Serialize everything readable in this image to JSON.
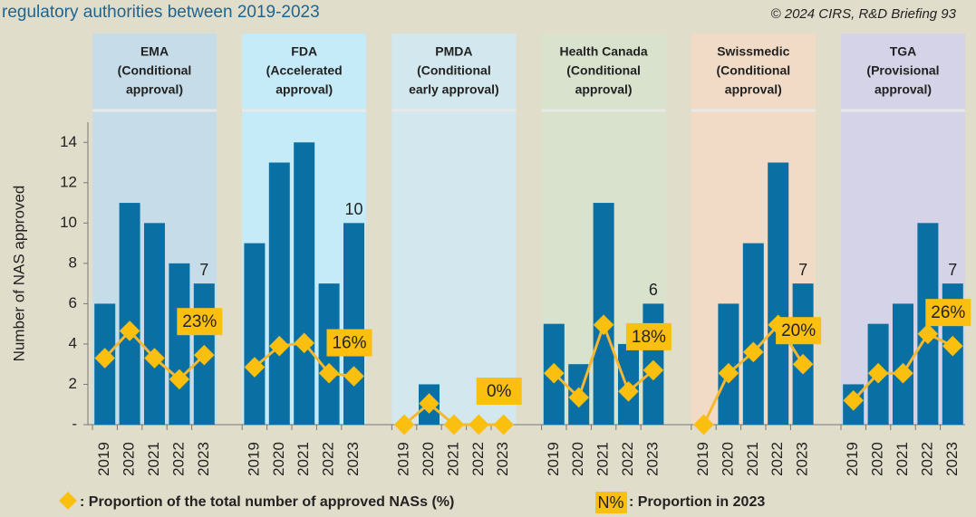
{
  "chart_data": {
    "type": "bar",
    "title": "regulatory authorities between 2019-2023",
    "source": "© 2024 CIRS, R&D Briefing 93",
    "y_label": "Number of NAS approved",
    "ylim": [
      0,
      15
    ],
    "yticks": [
      {
        "value": 0,
        "label": "-"
      },
      2,
      4,
      6,
      8,
      10,
      12,
      14
    ],
    "y2lim": [
      0,
      100
    ],
    "categories": [
      "2019",
      "2020",
      "2021",
      "2022",
      "2023"
    ],
    "bar_color": "#0a6fa3",
    "share_color": "#fbbf10",
    "panels": [
      {
        "header": [
          "EMA",
          "(Conditional",
          "approval)"
        ],
        "bg": "#c6dde9",
        "values": [
          6,
          11,
          10,
          8,
          7
        ],
        "value_labels": [
          null,
          null,
          null,
          null,
          "7"
        ],
        "shares": [
          22,
          31,
          22,
          15,
          23
        ],
        "share_labels": [
          null,
          null,
          null,
          null,
          "23%"
        ]
      },
      {
        "header": [
          "FDA",
          "(Accelerated",
          "approval)"
        ],
        "bg": "#c6ebf8",
        "values": [
          9,
          13,
          14,
          7,
          10
        ],
        "value_labels": [
          null,
          null,
          null,
          null,
          "10"
        ],
        "shares": [
          19,
          26,
          27,
          17,
          16
        ],
        "share_labels": [
          null,
          null,
          null,
          null,
          "16%"
        ]
      },
      {
        "header": [
          "PMDA",
          "(Conditional",
          "early approval)"
        ],
        "bg": "#d3e8ee",
        "values": [
          0,
          2,
          0,
          0,
          0
        ],
        "shares": [
          0,
          7,
          0,
          0,
          0
        ],
        "share_labels": [
          null,
          null,
          null,
          null,
          "0%"
        ]
      },
      {
        "header": [
          "Health Canada",
          "(Conditional",
          "approval)"
        ],
        "bg": "#d8e2cd",
        "values": [
          5,
          3,
          11,
          4,
          6
        ],
        "value_labels": [
          null,
          null,
          null,
          null,
          "6"
        ],
        "shares": [
          17,
          9,
          33,
          11,
          18
        ],
        "share_labels": [
          null,
          null,
          null,
          null,
          "18%"
        ]
      },
      {
        "header": [
          "Swissmedic",
          "(Conditional",
          "approval)"
        ],
        "bg": "#f1dbc6",
        "values": [
          0,
          6,
          9,
          13,
          7
        ],
        "value_labels": [
          null,
          null,
          null,
          null,
          "7"
        ],
        "shares": [
          0,
          17,
          24,
          33,
          20
        ],
        "share_labels": [
          null,
          null,
          null,
          null,
          "20%"
        ]
      },
      {
        "header": [
          "TGA",
          "(Provisional",
          "approval)"
        ],
        "bg": "#d5d3e7",
        "values": [
          2,
          5,
          6,
          10,
          7
        ],
        "value_labels": [
          null,
          null,
          null,
          null,
          "7"
        ],
        "shares": [
          8,
          17,
          17,
          30,
          26
        ],
        "share_labels": [
          null,
          null,
          null,
          null,
          "26%"
        ]
      }
    ],
    "legend": {
      "share": ": Proportion of the total number of approved NASs (%)",
      "box": "N%",
      "box_text": ": Proportion in 2023"
    }
  }
}
